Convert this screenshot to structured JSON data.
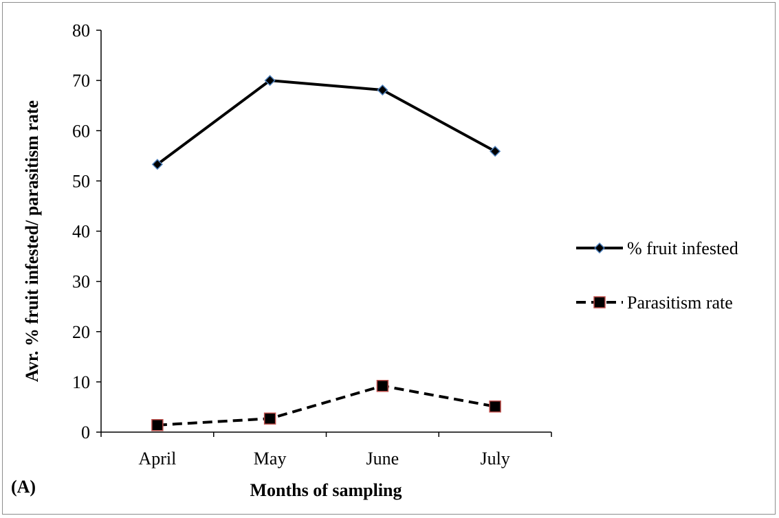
{
  "chart_data": {
    "type": "line",
    "categories": [
      "April",
      "May",
      "June",
      "July"
    ],
    "series": [
      {
        "name": "% fruit infested",
        "values": [
          53.3,
          70.0,
          68.1,
          55.9
        ],
        "line_color": "#000000",
        "line_style": "solid",
        "marker": "diamond",
        "marker_fill": "#000000",
        "marker_edge": "#4a7ebb"
      },
      {
        "name": "Parasitism rate",
        "values": [
          1.4,
          2.7,
          9.2,
          5.1
        ],
        "line_color": "#000000",
        "line_style": "dashed",
        "marker": "square",
        "marker_fill": "#000000",
        "marker_edge": "#c0504d"
      }
    ],
    "ylim": [
      0,
      80
    ],
    "yticks": [
      "0",
      "10",
      "20",
      "30",
      "40",
      "50",
      "60",
      "70",
      "80"
    ],
    "xlabel": "Months of sampling",
    "ylabel": "Avr. % fruit infested/ parasitism rate",
    "panel_label": "(A)",
    "legend_position": "right",
    "grid": false
  }
}
